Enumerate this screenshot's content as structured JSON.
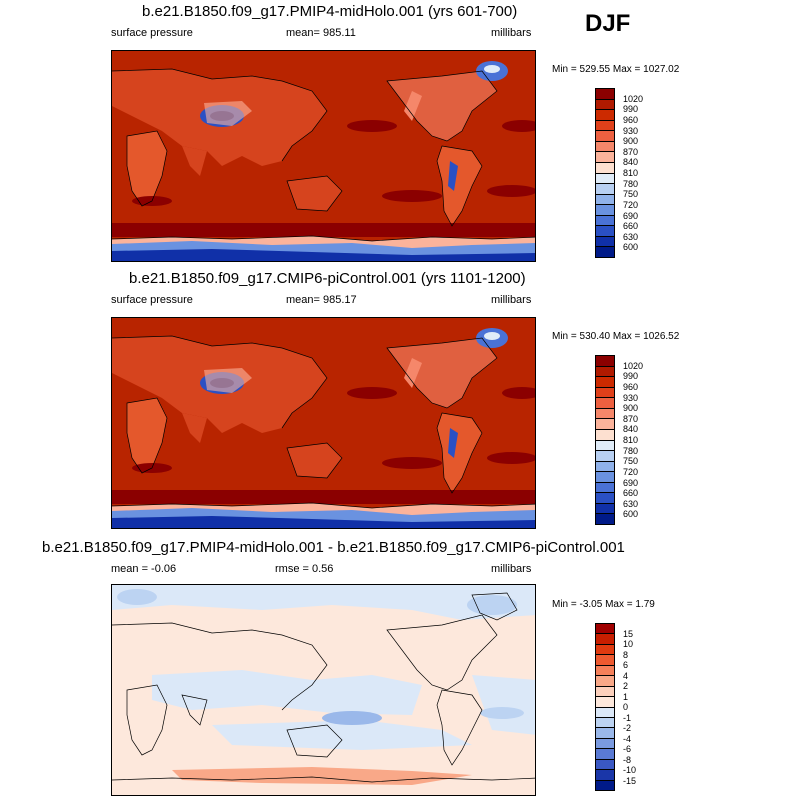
{
  "season": "DJF",
  "panels": [
    {
      "title": "b.e21.B1850.f09_g17.PMIP4-midHolo.001 (yrs 601-700)",
      "left": "surface pressure",
      "center": "mean= 985.11",
      "right": "millibars",
      "minmax": "Min = 529.55 Max = 1027.02",
      "type": "field"
    },
    {
      "title": "b.e21.B1850.f09_g17.CMIP6-piControl.001 (yrs 1101-1200)",
      "left": "surface pressure",
      "center": "mean= 985.17",
      "right": "millibars",
      "minmax": "Min = 530.40 Max = 1026.52",
      "type": "field"
    },
    {
      "title": "b.e21.B1850.f09_g17.PMIP4-midHolo.001 - b.e21.B1850.f09_g17.CMIP6-piControl.001",
      "left": "mean =  -0.06",
      "center": "rmse =   0.56",
      "right": "millibars",
      "minmax": "Min =  -3.05 Max =   1.79",
      "type": "diff"
    }
  ],
  "colorbar_field": {
    "labels": [
      "1020",
      "990",
      "960",
      "930",
      "900",
      "870",
      "840",
      "810",
      "780",
      "750",
      "720",
      "690",
      "660",
      "630",
      "600"
    ],
    "colors": [
      "#8b0000",
      "#b01a00",
      "#cc2a00",
      "#e0401a",
      "#ed6040",
      "#f5876a",
      "#fbb39b",
      "#fde0d0",
      "#e0ecf8",
      "#b8d0f2",
      "#90b2ea",
      "#6a92e0",
      "#4a72d6",
      "#2a50c4",
      "#1030a8",
      "#001a88"
    ]
  },
  "colorbar_diff": {
    "labels": [
      "15",
      "10",
      "8",
      "6",
      "4",
      "2",
      "1",
      "0",
      "-1",
      "-2",
      "-4",
      "-6",
      "-8",
      "-10",
      "-15"
    ],
    "colors": [
      "#a00000",
      "#c81e00",
      "#e03a10",
      "#ee5a30",
      "#f5805a",
      "#f9a888",
      "#fcd0bc",
      "#fde8dc",
      "#dbe8f8",
      "#bcd3f2",
      "#9ab8ea",
      "#7a9ae0",
      "#5a7ad4",
      "#3a58c4",
      "#1a36a8",
      "#001a88"
    ]
  }
}
